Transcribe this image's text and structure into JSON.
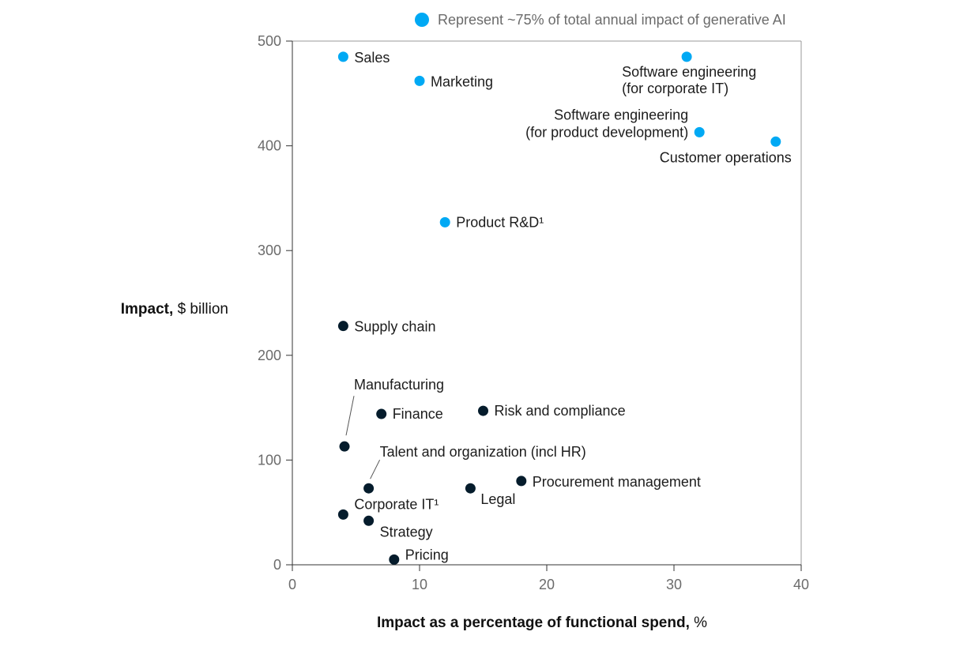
{
  "chart_data": {
    "type": "scatter",
    "title": "",
    "xlabel_bold": "Impact as a percentage of functional spend,",
    "xlabel_unit": "%",
    "ylabel_bold": "Impact,",
    "ylabel_unit": "$ billion",
    "xlim": [
      0,
      40
    ],
    "ylim": [
      0,
      500
    ],
    "x_ticks": [
      "0",
      "10",
      "20",
      "30",
      "40"
    ],
    "y_ticks": [
      "0",
      "100",
      "200",
      "300",
      "400",
      "500"
    ],
    "legend": {
      "label": "Represent ~75% of total annual impact of generative AI",
      "color": "#00a9f4"
    },
    "colors": {
      "highlight": "#00a9f4",
      "other": "#051c2c"
    },
    "points": [
      {
        "label": "Sales",
        "x": 4,
        "y": 485,
        "highlight": true
      },
      {
        "label": "Marketing",
        "x": 10,
        "y": 462,
        "highlight": true
      },
      {
        "label": "Software engineering (for corporate IT)",
        "lines": [
          "Software engineering",
          "(for corporate IT)"
        ],
        "x": 31,
        "y": 485,
        "highlight": true
      },
      {
        "label": "Software engineering (for product development)",
        "lines": [
          "Software engineering",
          "(for product development)"
        ],
        "x": 32,
        "y": 413,
        "highlight": true
      },
      {
        "label": "Customer operations",
        "x": 38,
        "y": 404,
        "highlight": true
      },
      {
        "label": "Product R&D¹",
        "x": 12,
        "y": 327,
        "highlight": true
      },
      {
        "label": "Supply chain",
        "x": 4,
        "y": 228,
        "highlight": false
      },
      {
        "label": "Manufacturing",
        "x": 4.1,
        "y": 113,
        "highlight": false
      },
      {
        "label": "Finance",
        "x": 7,
        "y": 144,
        "highlight": false
      },
      {
        "label": "Risk and compliance",
        "x": 15,
        "y": 147,
        "highlight": false
      },
      {
        "label": "Talent and organization (incl HR)",
        "x": 6,
        "y": 73,
        "highlight": false
      },
      {
        "label": "Procurement management",
        "x": 18,
        "y": 80,
        "highlight": false
      },
      {
        "label": "Legal",
        "x": 14,
        "y": 73,
        "highlight": false
      },
      {
        "label": "Corporate IT¹",
        "x": 4,
        "y": 48,
        "highlight": false
      },
      {
        "label": "Strategy",
        "x": 6,
        "y": 42,
        "highlight": false
      },
      {
        "label": "Pricing",
        "x": 8,
        "y": 5,
        "highlight": false
      }
    ]
  }
}
